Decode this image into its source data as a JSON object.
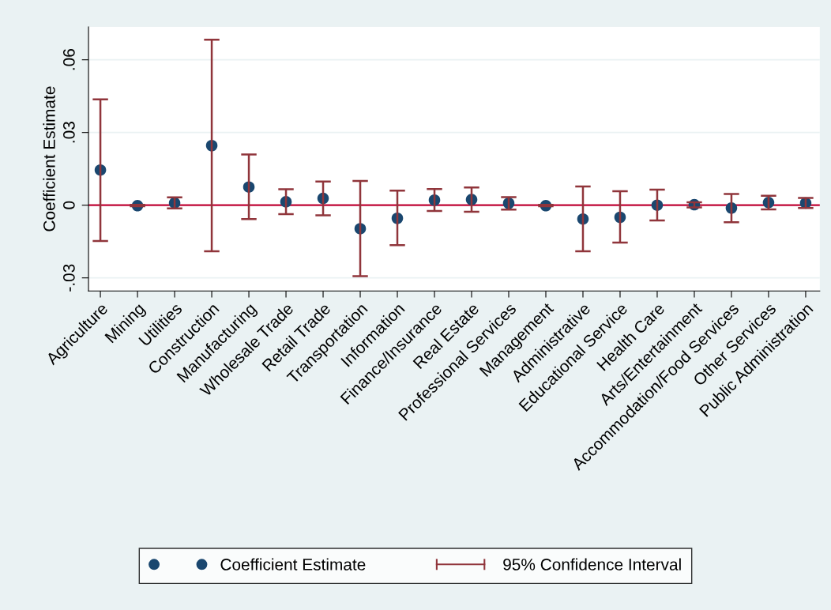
{
  "chart_data": {
    "type": "scatter",
    "ylabel": "Coefficient Estimate",
    "categories": [
      "Agriculture",
      "Mining",
      "Utilities",
      "Construction",
      "Manufacturing",
      "Wholesale Trade",
      "Retail Trade",
      "Transportation",
      "Information",
      "Finance/Insurance",
      "Real Estate",
      "Professional Services",
      "Management",
      "Administrative",
      "Educational Service",
      "Health Care",
      "Arts/Entertainment",
      "Accommodation/Food Services",
      "Other Services",
      "Public Administration"
    ],
    "series": [
      {
        "name": "Coefficient Estimate",
        "marker": "circle",
        "color": "#1a476f",
        "values": [
          0.0145,
          -0.0002,
          0.0009,
          0.0246,
          0.0075,
          0.0014,
          0.0028,
          -0.0097,
          -0.0054,
          0.0021,
          0.0023,
          0.0008,
          -0.0002,
          -0.0057,
          -0.005,
          0.0,
          0.0002,
          -0.0012,
          0.0011,
          0.0009
        ],
        "errors": [
          [
            -0.0148,
            0.0437
          ],
          [
            -0.0004,
            0.0001
          ],
          [
            -0.0013,
            0.0032
          ],
          [
            -0.019,
            0.0683
          ],
          [
            -0.0057,
            0.0209
          ],
          [
            -0.0037,
            0.0066
          ],
          [
            -0.0042,
            0.0098
          ],
          [
            -0.0293,
            0.01
          ],
          [
            -0.0165,
            0.006
          ],
          [
            -0.0024,
            0.0067
          ],
          [
            -0.0027,
            0.0073
          ],
          [
            -0.0018,
            0.0033
          ],
          [
            -0.0004,
            0.0001
          ],
          [
            -0.019,
            0.0077
          ],
          [
            -0.0154,
            0.0058
          ],
          [
            -0.0063,
            0.0064
          ],
          [
            -0.0009,
            0.0012
          ],
          [
            -0.007,
            0.0046
          ],
          [
            -0.0017,
            0.0039
          ],
          [
            -0.0012,
            0.003
          ]
        ]
      }
    ],
    "annotations": [
      "95% Confidence Interval"
    ],
    "ylim": [
      -0.0354,
      0.0736
    ],
    "yticks": [
      {
        "value": -0.03,
        "label": "-.03"
      },
      {
        "value": 0,
        "label": "0"
      },
      {
        "value": 0.03,
        "label": ".03"
      },
      {
        "value": 0.06,
        "label": ".06"
      }
    ],
    "ref_lines": [
      {
        "axis": "y",
        "value": 0,
        "color": "#c10534"
      }
    ],
    "grid": "y",
    "legend": "bottom"
  }
}
